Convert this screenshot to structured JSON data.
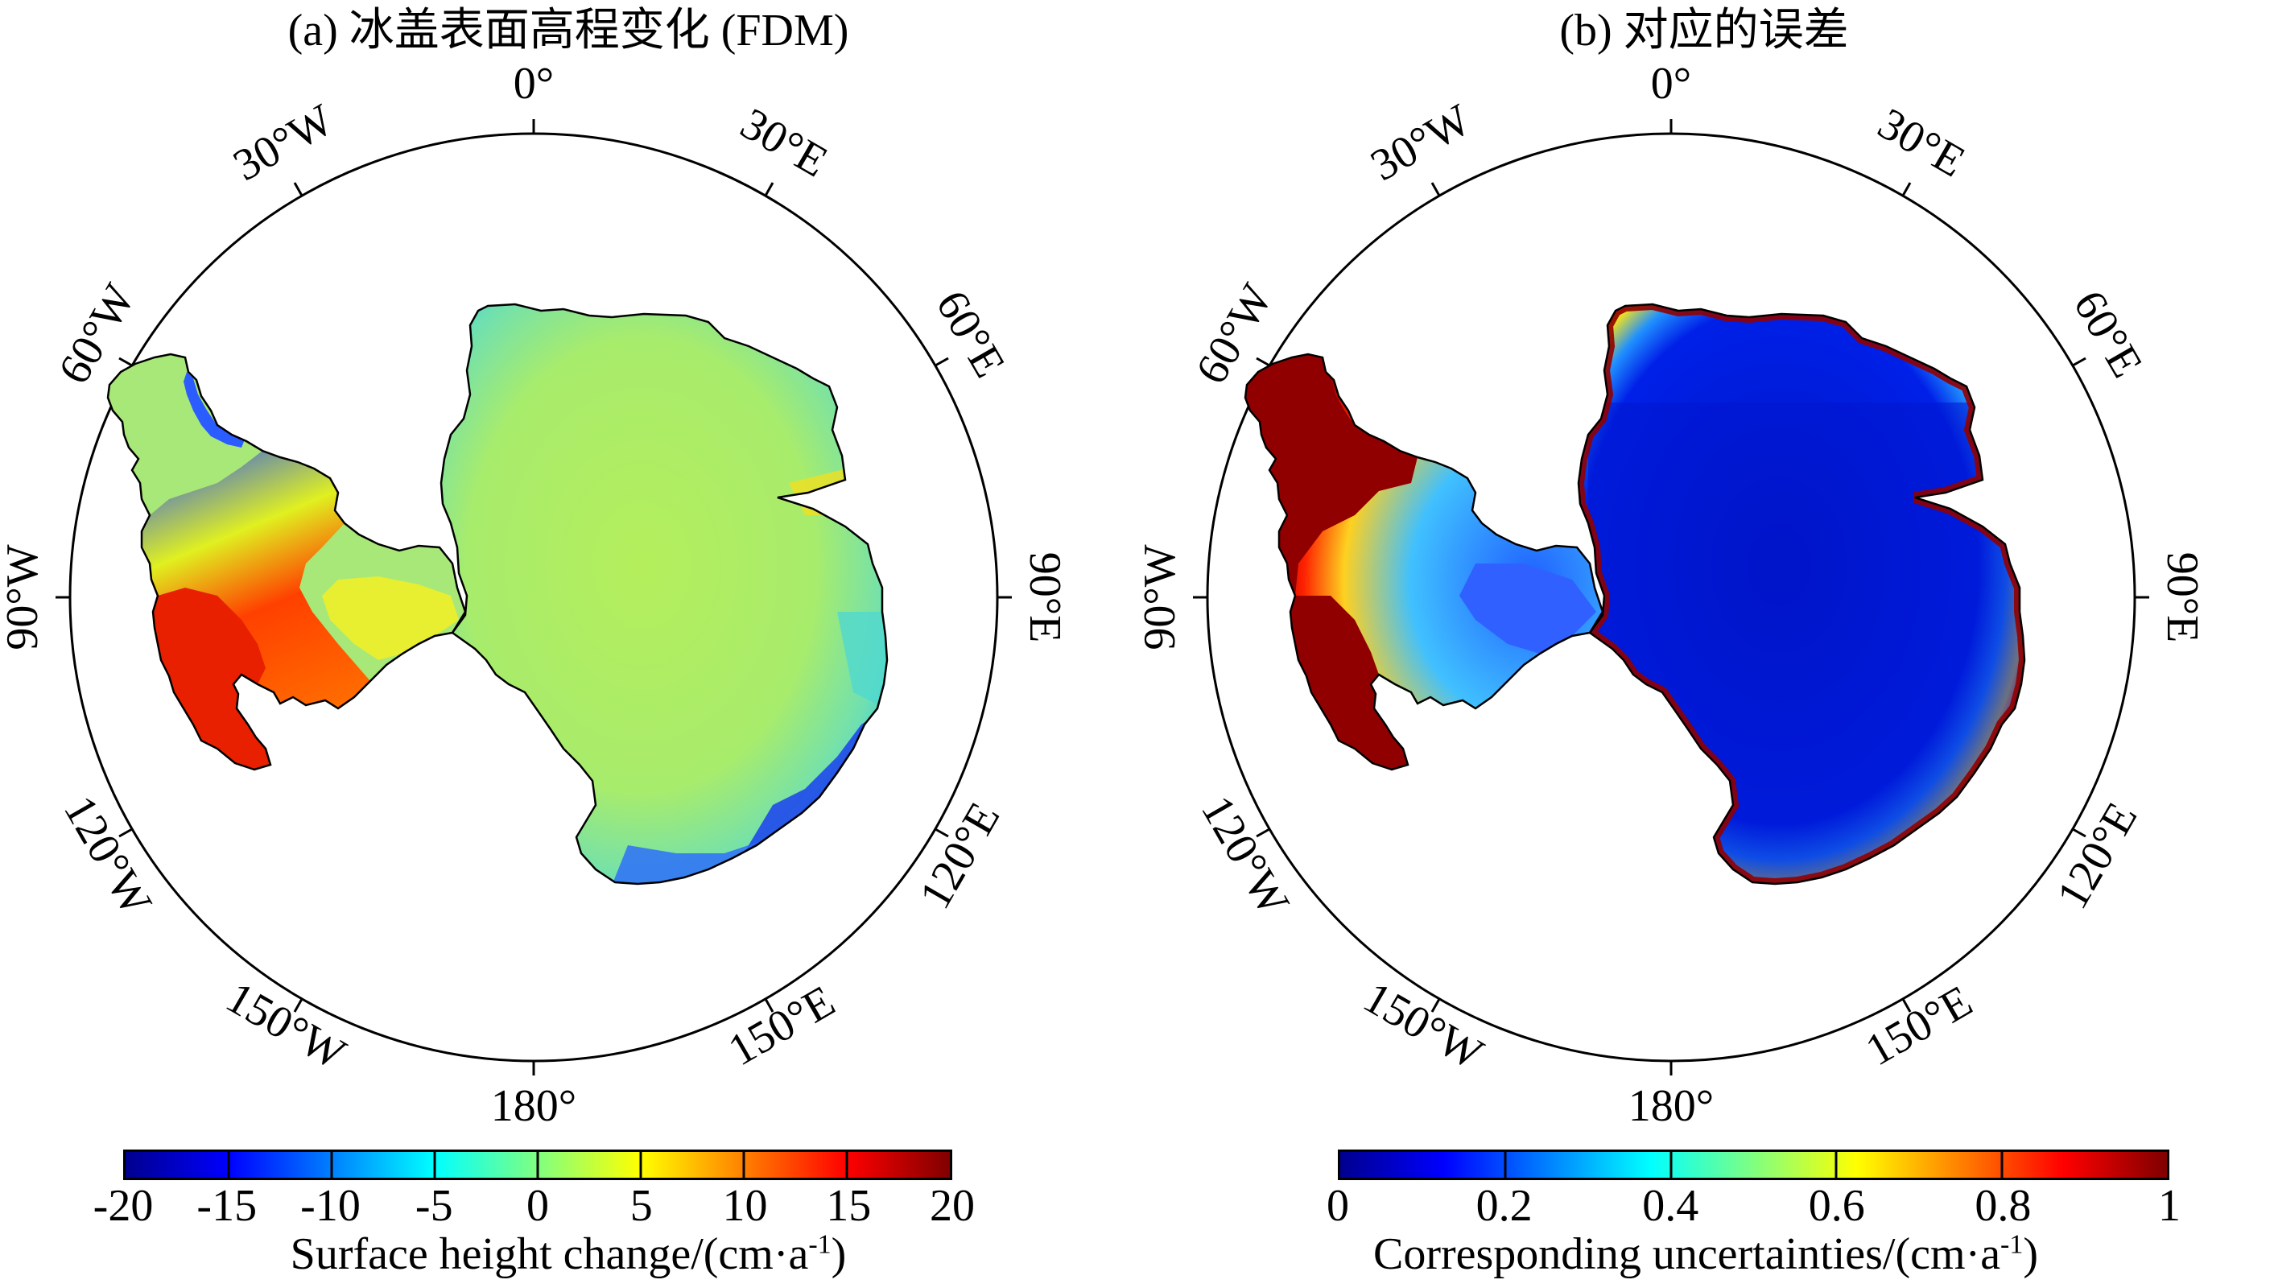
{
  "colors": {
    "jet": [
      "#00008f",
      "#0000ff",
      "#0080ff",
      "#00ffff",
      "#80ff80",
      "#ffff00",
      "#ff8000",
      "#ff0000",
      "#800000"
    ],
    "coastline": "#000000",
    "circle": "#000000"
  },
  "longitude_labels": [
    "0°",
    "30°E",
    "60°E",
    "90°E",
    "120°E",
    "150°E",
    "180°",
    "150°W",
    "120°W",
    "90°W",
    "60°W",
    "30°W"
  ],
  "panel_a": {
    "title": "(a) 冰盖表面高程变化 (FDM)",
    "colorbar": {
      "ticks": [
        "-20",
        "-15",
        "-10",
        "-5",
        "0",
        "5",
        "10",
        "15",
        "20"
      ],
      "label_main": "Surface height change/(cm·a",
      "label_sup": "-1",
      "label_end": ")",
      "range": [
        -20,
        20
      ]
    },
    "field": {
      "interior": "#b6ee5a",
      "patches": [
        {
          "region": "Antarctic Peninsula",
          "color": "#ff3000"
        },
        {
          "region": "Amundsen Sea coast",
          "color": "#ff9000"
        },
        {
          "region": "Wilkes Land coast",
          "color": "#2060ff"
        },
        {
          "region": "East Antarctic coast",
          "color": "#30d8d8"
        }
      ]
    }
  },
  "panel_b": {
    "title": "(b) 对应的误差",
    "colorbar": {
      "ticks": [
        "0",
        "0.2",
        "0.4",
        "0.6",
        "0.8",
        "1"
      ],
      "label_main": "Corresponding uncertainties/(cm·a",
      "label_sup": "-1",
      "label_end": ")",
      "range": [
        0,
        1
      ]
    },
    "field": {
      "interior": "#0018c8",
      "coastal_ring": "#900000",
      "patches": [
        {
          "region": "Antarctic Peninsula",
          "color": "#900000"
        },
        {
          "region": "West Antarctica",
          "color": "#40b0ff"
        }
      ]
    }
  }
}
